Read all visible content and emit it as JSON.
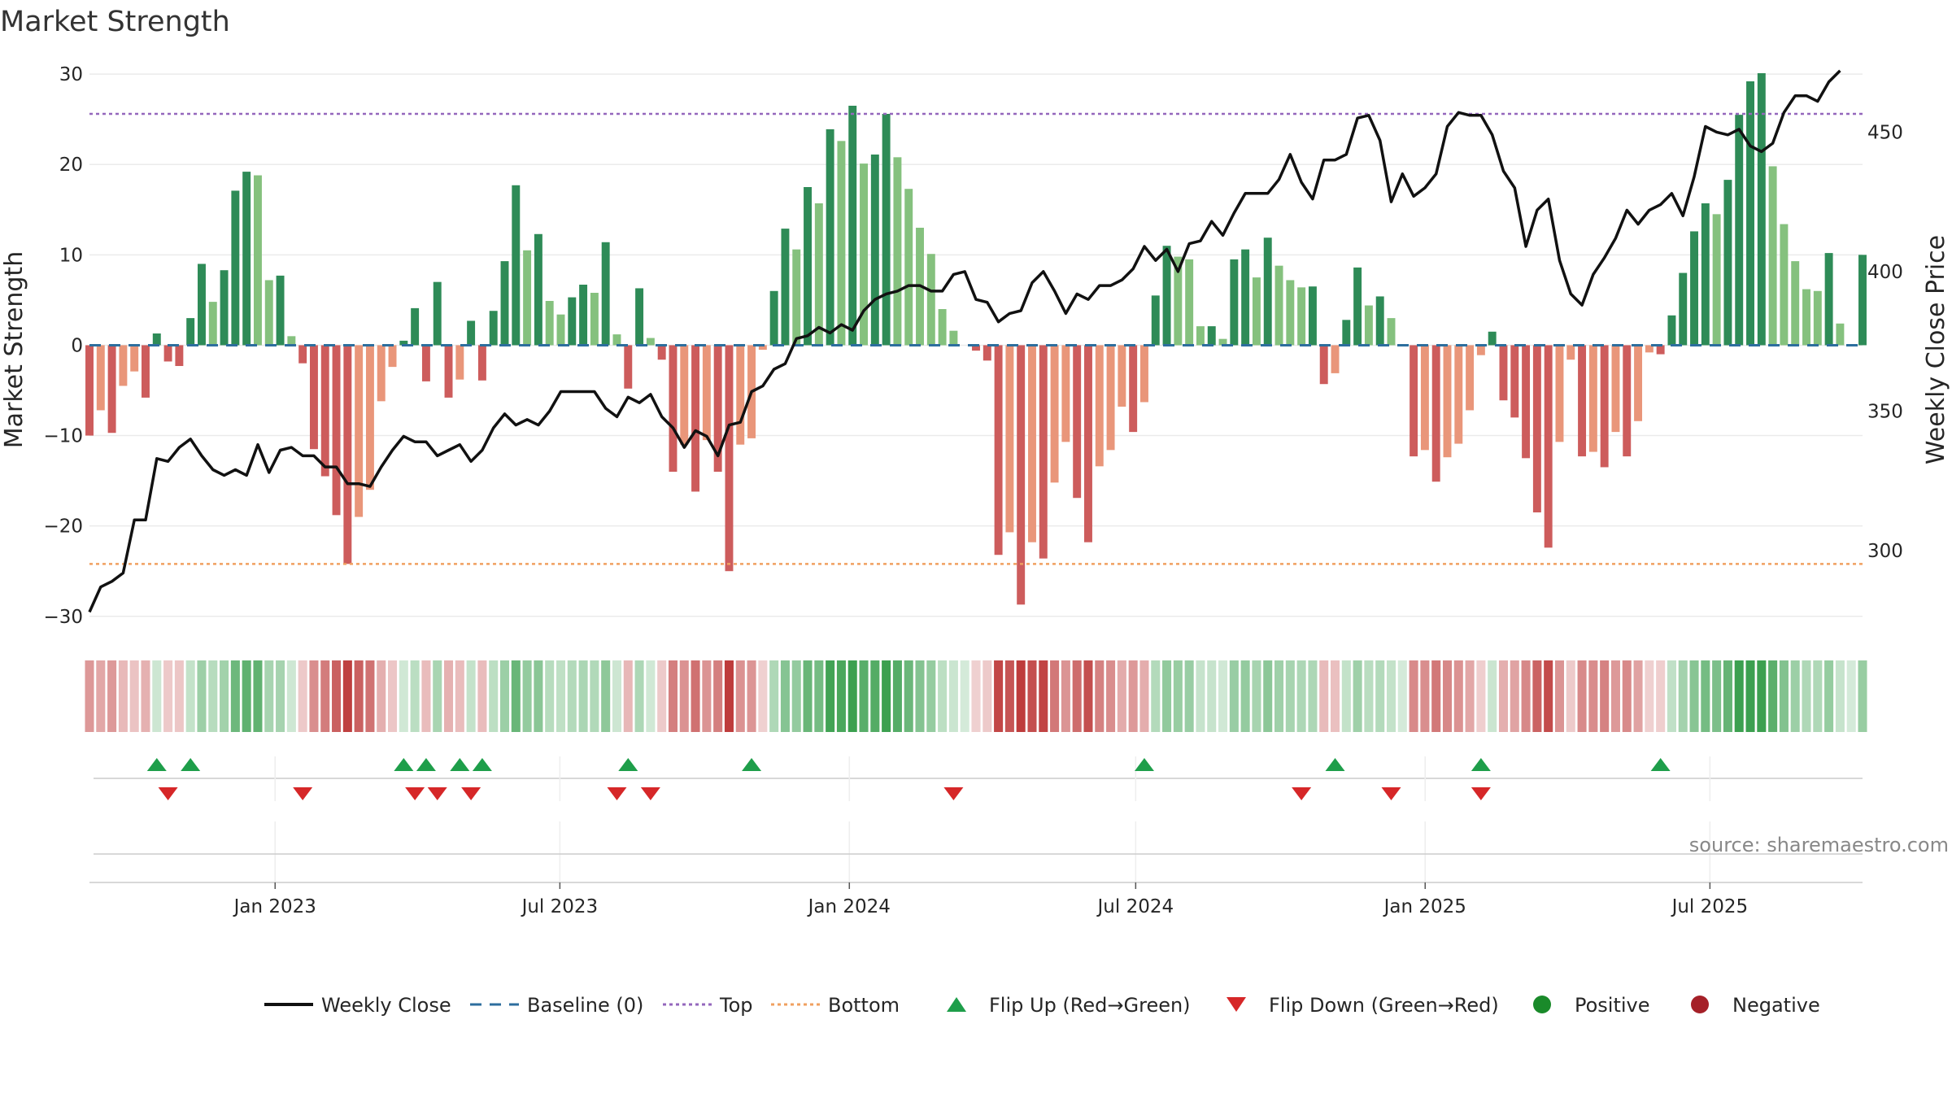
{
  "chart_data": {
    "type": "bar",
    "title": "Market Strength",
    "ylabel": "Market Strength",
    "y2label": "Weekly Close Price",
    "ylim": [
      -32,
      31
    ],
    "y2lim": [
      270,
      474
    ],
    "yticks": [
      -30,
      -20,
      -10,
      0,
      10,
      20,
      30
    ],
    "ytick_labels": [
      "−30",
      "−20",
      "−10",
      "0",
      "10",
      "20",
      "30"
    ],
    "y2ticks": [
      300,
      350,
      400,
      450
    ],
    "y2tick_labels": [
      "300",
      "350",
      "400",
      "450"
    ],
    "top_level": 25.6,
    "bottom_level": -24.2,
    "x_start": "2022-09-05",
    "x_end": "2025-10-06",
    "xticks": [
      {
        "date": "2023-01-01",
        "label": "Jan 2023"
      },
      {
        "date": "2023-07-01",
        "label": "Jul 2023"
      },
      {
        "date": "2024-01-01",
        "label": "Jan 2024"
      },
      {
        "date": "2024-07-01",
        "label": "Jul 2024"
      },
      {
        "date": "2025-01-01",
        "label": "Jan 2025"
      },
      {
        "date": "2025-07-01",
        "label": "Jul 2025"
      }
    ],
    "strength": [
      -10,
      -7.2,
      -9.7,
      -4.5,
      -2.9,
      -5.8,
      1.3,
      -1.8,
      -2.3,
      3,
      9,
      4.8,
      8.3,
      17.1,
      19.2,
      18.8,
      7.2,
      7.7,
      1,
      -2,
      -11.5,
      -14.5,
      -18.8,
      -24.2,
      -19,
      -16,
      -6.2,
      -2.4,
      0.5,
      4.1,
      -4,
      7,
      -5.8,
      -3.8,
      2.7,
      -3.9,
      3.8,
      9.3,
      17.7,
      10.5,
      12.3,
      4.9,
      3.4,
      5.3,
      6.7,
      5.8,
      11.4,
      1.2,
      -4.8,
      6.3,
      0.8,
      -1.6,
      -14,
      -11,
      -16.2,
      -10.5,
      -14,
      -25,
      -11,
      -10.3,
      -0.5,
      6,
      12.9,
      10.6,
      17.5,
      15.7,
      23.9,
      22.6,
      26.5,
      20.1,
      21.1,
      25.6,
      20.8,
      17.3,
      13,
      10.1,
      4,
      1.6,
      0,
      -0.6,
      -1.7,
      -23.2,
      -20.7,
      -28.7,
      -21.8,
      -23.6,
      -15.2,
      -10.7,
      -16.9,
      -21.8,
      -13.4,
      -11.6,
      -6.8,
      -9.6,
      -6.3,
      5.5,
      11,
      9.8,
      9.5,
      2.1,
      2.1,
      0.7,
      9.5,
      10.6,
      7.5,
      11.9,
      8.8,
      7.2,
      6.4,
      6.5,
      -4.3,
      -3.1,
      2.8,
      8.6,
      4.4,
      5.4,
      3,
      0,
      -12.3,
      -11.6,
      -15.1,
      -12.4,
      -10.9,
      -7.2,
      -1.1,
      1.5,
      -6.1,
      -8,
      -12.5,
      -18.5,
      -22.4,
      -10.7,
      -1.6,
      -12.3,
      -11.8,
      -13.5,
      -9.6,
      -12.3,
      -8.4,
      -0.8,
      -1,
      3.3,
      8,
      12.6,
      15.7,
      14.5,
      18.3,
      25.5,
      29.2,
      30.1,
      19.8,
      13.4,
      9.3,
      6.2,
      6,
      10.2,
      2.4,
      0,
      10
    ],
    "weekly_close": [
      278,
      287,
      289,
      292,
      311,
      311,
      333,
      332,
      337,
      340,
      334,
      329,
      327,
      329,
      327,
      338,
      328,
      336,
      337,
      334,
      334,
      330,
      330,
      324,
      324,
      323,
      330,
      336,
      341,
      339,
      339,
      334,
      336,
      338,
      332,
      336,
      344,
      349,
      345,
      347,
      345,
      350,
      357,
      357,
      357,
      357,
      351,
      348,
      355,
      353,
      356,
      348,
      344,
      337,
      343,
      341,
      334,
      345,
      346,
      357,
      359,
      365,
      367,
      376,
      377,
      380,
      378,
      381,
      379,
      386,
      390,
      392,
      393,
      395,
      395,
      393,
      393,
      399,
      400,
      390,
      389,
      382,
      385,
      386,
      396,
      400,
      393,
      385,
      392,
      390,
      395,
      395,
      397,
      401,
      409,
      404,
      408,
      400,
      410,
      411,
      418,
      413,
      421,
      428,
      428,
      428,
      433,
      442,
      432,
      426,
      440,
      440,
      442,
      455,
      456,
      447,
      425,
      435,
      427,
      430,
      435,
      452,
      457,
      456,
      456,
      449,
      436,
      430,
      409,
      422,
      426,
      404,
      392,
      388,
      399,
      405,
      412,
      422,
      417,
      422,
      424,
      428,
      420,
      434,
      452,
      450,
      449,
      451,
      445,
      443,
      446,
      457,
      463,
      463,
      461,
      468,
      472
    ],
    "flip_up_weeks": [
      6,
      9,
      28,
      30,
      33,
      35,
      48,
      59,
      94,
      111,
      124,
      140
    ],
    "flip_down_weeks": [
      7,
      19,
      29,
      31,
      34,
      47,
      50,
      77,
      108,
      116,
      124
    ],
    "heat_strip_label": "Positive / Negative",
    "source": "source: sharemaestro.com",
    "legend": [
      {
        "label": "Weekly Close",
        "kind": "line",
        "color": "#111111"
      },
      {
        "label": "Baseline (0)",
        "kind": "dash",
        "color": "#2d6e9e"
      },
      {
        "label": "Top",
        "kind": "dot",
        "color": "#9467bd"
      },
      {
        "label": "Bottom",
        "kind": "dot",
        "color": "#f0a060"
      },
      {
        "label": "Flip Up (Red→Green)",
        "kind": "tri-up",
        "color": "#1e9e4a"
      },
      {
        "label": "Flip Down (Green→Red)",
        "kind": "tri-down",
        "color": "#d62728"
      },
      {
        "label": "Positive",
        "kind": "circle",
        "color": "#1a8a2a"
      },
      {
        "label": "Negative",
        "kind": "circle",
        "color": "#a52028"
      }
    ]
  },
  "colors": {
    "pos_dark": "#2e8b57",
    "pos_light": "#85c17e",
    "neg_dark": "#cd5c5c",
    "neg_light": "#e9967a",
    "top_line": "#9467bd",
    "bottom_line": "#f0a060",
    "baseline": "#2d6e9e",
    "grid": "#ebebeb",
    "flip_up": "#1e9e4a",
    "flip_down": "#d62728"
  }
}
